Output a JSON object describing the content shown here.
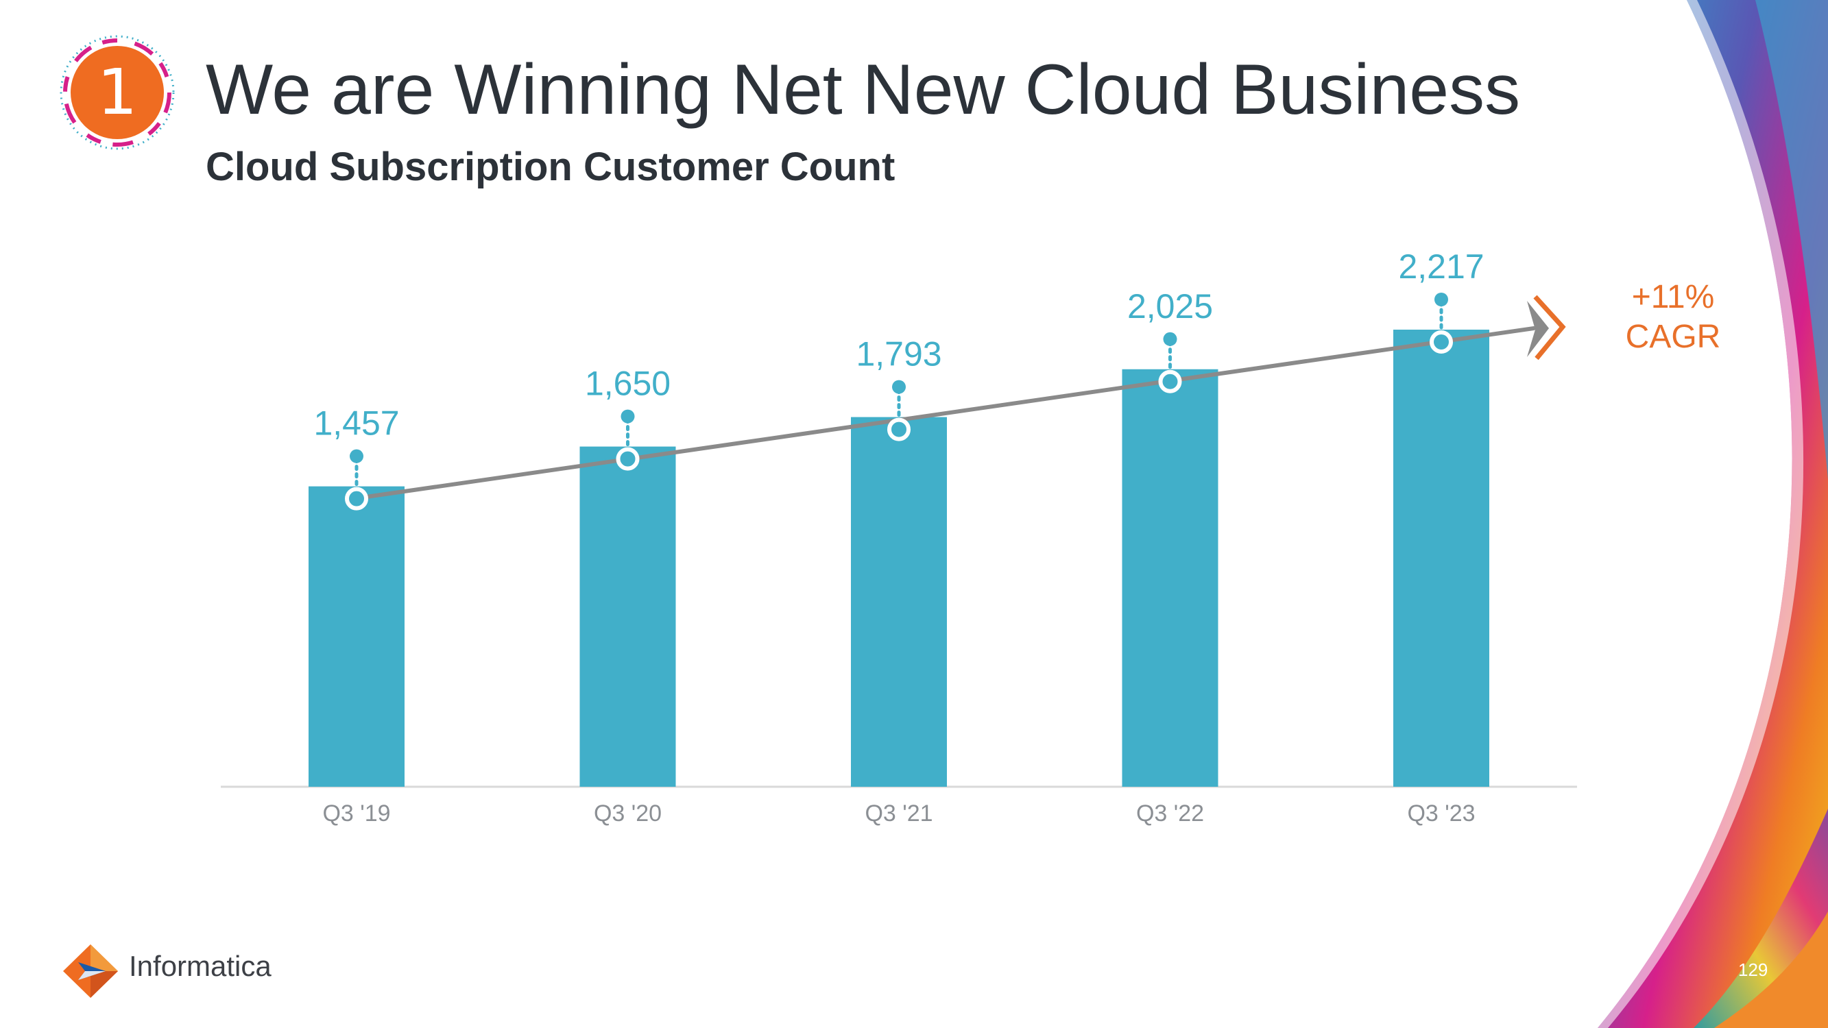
{
  "slide": {
    "badge_number": "1",
    "title": "We are Winning Net New Cloud Business",
    "page_number": "129"
  },
  "logo": {
    "text": "Informatica"
  },
  "annotation": {
    "growth": "+11%",
    "label": "CAGR",
    "color": "#e8702a"
  },
  "colors": {
    "bar": "#41afc9",
    "trend": "#8a8a8a",
    "accent": "#e8702a",
    "badge": "#ef6c21"
  },
  "chart_data": {
    "type": "bar",
    "title": "Cloud Subscription Customer Count",
    "categories": [
      "Q3 '19",
      "Q3 '20",
      "Q3 '21",
      "Q3 '22",
      "Q3 '23"
    ],
    "values": [
      1457,
      1650,
      1793,
      2025,
      2217
    ],
    "value_labels": [
      "1,457",
      "1,650",
      "1,793",
      "2,025",
      "2,217"
    ],
    "ylim": [
      0,
      2217
    ],
    "grid": false,
    "legend": "none",
    "trend_line": true
  }
}
